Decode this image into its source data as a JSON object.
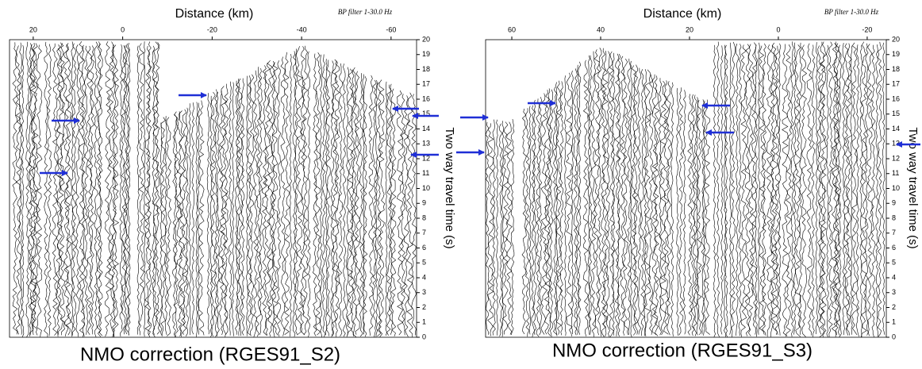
{
  "chart_data": [
    {
      "type": "seismic-section",
      "title": "Distance (km)",
      "annotation": "BP filter 1-30.0 Hz",
      "ylabel": "Two way travel time (s)",
      "caption": "NMO correction (RGES91_S2)",
      "xlim": [
        25.3,
        -65.7
      ],
      "xticks": [
        20,
        0,
        -20,
        -40,
        -60
      ],
      "ylim": [
        0,
        20
      ],
      "yticks": [
        0,
        1,
        2,
        3,
        4,
        5,
        6,
        7,
        8,
        9,
        10,
        11,
        12,
        13,
        14,
        15,
        16,
        17,
        18,
        19,
        20
      ]
    },
    {
      "type": "seismic-section",
      "title": "Distance (km)",
      "annotation": "BP filter 1-30.0 Hz",
      "ylabel": "Two way travel time (s)",
      "caption": "NMO correction (RGES91_S3)",
      "xlim": [
        65.9,
        -24.3
      ],
      "xticks": [
        60,
        40,
        20,
        0,
        -20
      ],
      "ylim": [
        0,
        20
      ],
      "yticks": [
        0,
        1,
        2,
        3,
        4,
        5,
        6,
        7,
        8,
        9,
        10,
        11,
        12,
        13,
        14,
        15,
        16,
        17,
        18,
        19,
        20
      ]
    }
  ]
}
